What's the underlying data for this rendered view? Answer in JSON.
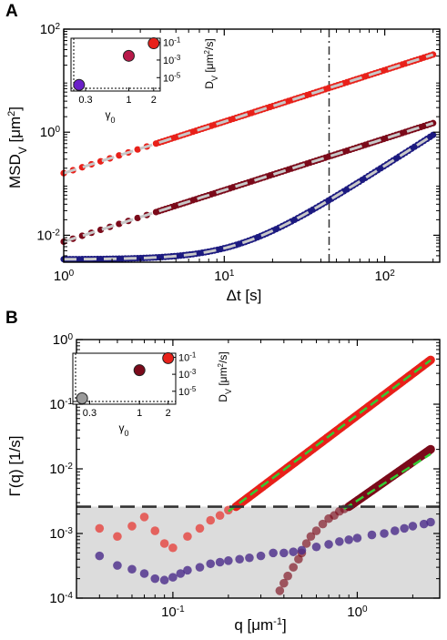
{
  "chart_data": [
    {
      "panel": "A",
      "type": "scatter",
      "xscale": "log",
      "yscale": "log",
      "xlabel": "Δt [s]",
      "ylabel": "MSD_V [μm²]",
      "xlim": [
        1,
        220
      ],
      "ylim": [
        0.003,
        100
      ],
      "xticks": [
        {
          "v": 1,
          "label": "10^0"
        },
        {
          "v": 10,
          "label": "10^1"
        },
        {
          "v": 100,
          "label": "10^2"
        }
      ],
      "yticks": [
        {
          "v": 0.01,
          "label": "10^-2"
        },
        {
          "v": 1,
          "label": "10^0"
        },
        {
          "v": 100,
          "label": "10^2"
        }
      ],
      "vline_x": 45,
      "series": [
        {
          "color": "#e8211a",
          "x": [
            1,
            2,
            3,
            4,
            5,
            6,
            8,
            10,
            13,
            16,
            20,
            25,
            30,
            40,
            50,
            60,
            80,
            100,
            130,
            160,
            200
          ],
          "slope": 1.0,
          "y0": 0.16,
          "line_start": 1
        },
        {
          "color": "#7b0a1a",
          "x": [
            1,
            2,
            3,
            4,
            5,
            6,
            8,
            10,
            13,
            16,
            20,
            25,
            30,
            40,
            50,
            60,
            80,
            100,
            130,
            160,
            200
          ],
          "slope": 1.0,
          "y0": 0.0075,
          "line_start": 1
        },
        {
          "color": "#1c1a80",
          "x": [
            1,
            2,
            3,
            4,
            5,
            6,
            8,
            10,
            13,
            16,
            20,
            25,
            30,
            40,
            50,
            60,
            80,
            100,
            130,
            160,
            200
          ],
          "plateau": 0.0034,
          "growth": 2.2e-05,
          "line_start": 1
        }
      ],
      "inset": {
        "xlabel": "γ₀",
        "ylabel": "D_V [μm²/s]",
        "xticks": [
          {
            "v": 0.3,
            "label": "0.3"
          },
          {
            "v": 1,
            "label": "1"
          },
          {
            "v": 2,
            "label": "2"
          }
        ],
        "yticks": [
          {
            "v": 0.1,
            "label": "10^-1"
          },
          {
            "v": 0.001,
            "label": "10^-3"
          },
          {
            "v": 1e-05,
            "label": "10^-5"
          }
        ],
        "points": [
          {
            "x": 0.25,
            "y": 1.5e-06,
            "color": "#6a1fc8"
          },
          {
            "x": 1.0,
            "y": 0.003,
            "color": "#b81a4a"
          },
          {
            "x": 2.0,
            "y": 0.08,
            "color": "#e8211a"
          }
        ]
      }
    },
    {
      "panel": "B",
      "type": "scatter",
      "xscale": "log",
      "yscale": "log",
      "xlabel": "q [μm⁻¹]",
      "ylabel": "Γ(q) [1/s]",
      "xlim": [
        0.03,
        2.8
      ],
      "ylim": [
        0.0001,
        1
      ],
      "xticks": [
        {
          "v": 0.1,
          "label": "10^-1"
        },
        {
          "v": 1,
          "label": "10^0"
        }
      ],
      "yticks": [
        {
          "v": 0.0001,
          "label": "10^-4"
        },
        {
          "v": 0.001,
          "label": "10^-3"
        },
        {
          "v": 0.01,
          "label": "10^-2"
        },
        {
          "v": 0.1,
          "label": "10^-1"
        },
        {
          "v": 1,
          "label": "10^0"
        }
      ],
      "noise_floor": 0.0026,
      "shaded_below_floor": true,
      "fit_lines": [
        {
          "color": "#33cc33",
          "q": [
            0.2,
            2.5
          ],
          "gamma": [
            0.0022,
            0.48
          ]
        },
        {
          "color": "#33cc33",
          "q": [
            0.85,
            2.5
          ],
          "gamma": [
            0.0024,
            0.017
          ]
        }
      ],
      "series": [
        {
          "color": "#e8211a",
          "above_floor": {
            "q_from": 0.22,
            "q_to": 2.5,
            "g_at_from": 0.0026,
            "slope": 2.15
          },
          "below_floor": {
            "q": [
              0.04,
              0.05,
              0.06,
              0.07,
              0.08,
              0.09,
              0.1,
              0.12,
              0.14,
              0.16,
              0.18,
              0.2
            ],
            "gamma": [
              0.0012,
              0.0009,
              0.0013,
              0.0018,
              0.0011,
              0.0007,
              0.0006,
              0.0009,
              0.0012,
              0.0016,
              0.0019,
              0.0023
            ]
          }
        },
        {
          "color": "#7b0a1a",
          "above_floor": {
            "q_from": 0.9,
            "q_to": 2.5,
            "g_at_from": 0.0026,
            "slope": 2.0
          },
          "below_floor": {
            "q": [
              0.38,
              0.4,
              0.42,
              0.45,
              0.48,
              0.5,
              0.53,
              0.56,
              0.6,
              0.65,
              0.7,
              0.75,
              0.8,
              0.85
            ],
            "gamma": [
              0.00013,
              0.00017,
              0.00022,
              0.0003,
              0.0004,
              0.0005,
              0.0007,
              0.0009,
              0.0011,
              0.0014,
              0.0017,
              0.0019,
              0.0022,
              0.0024
            ]
          }
        },
        {
          "color": "#4a2a8a",
          "all": {
            "q": [
              0.04,
              0.05,
              0.06,
              0.07,
              0.08,
              0.09,
              0.1,
              0.11,
              0.12,
              0.14,
              0.16,
              0.18,
              0.2,
              0.23,
              0.26,
              0.3,
              0.35,
              0.4,
              0.45,
              0.5,
              0.6,
              0.7,
              0.8,
              0.9,
              1.0,
              1.2,
              1.4,
              1.6,
              1.8,
              2.0,
              2.3,
              2.5
            ],
            "gamma": [
              0.00045,
              0.00032,
              0.00028,
              0.00024,
              0.0002,
              0.00019,
              0.00021,
              0.00024,
              0.00027,
              0.0003,
              0.00034,
              0.00036,
              0.00038,
              0.0004,
              0.00042,
              0.00045,
              0.0005,
              0.0005,
              0.00052,
              0.00055,
              0.00062,
              0.00068,
              0.00075,
              0.0008,
              0.00085,
              0.00095,
              0.001,
              0.0011,
              0.0012,
              0.0013,
              0.0014,
              0.0015
            ]
          }
        }
      ],
      "inset": {
        "xlabel": "γ₀",
        "ylabel": "D_V [μm²/s]",
        "xticks": [
          {
            "v": 0.3,
            "label": "0.3"
          },
          {
            "v": 1,
            "label": "1"
          },
          {
            "v": 2,
            "label": "2"
          }
        ],
        "yticks": [
          {
            "v": 0.1,
            "label": "10^-1"
          },
          {
            "v": 0.001,
            "label": "10^-3"
          },
          {
            "v": 1e-05,
            "label": "10^-5"
          }
        ],
        "points": [
          {
            "x": 0.25,
            "y": 1.5e-06,
            "color": "#9a9a9a"
          },
          {
            "x": 1.0,
            "y": 0.003,
            "color": "#7b0a1a"
          },
          {
            "x": 2.0,
            "y": 0.08,
            "color": "#e8211a"
          }
        ]
      }
    }
  ]
}
